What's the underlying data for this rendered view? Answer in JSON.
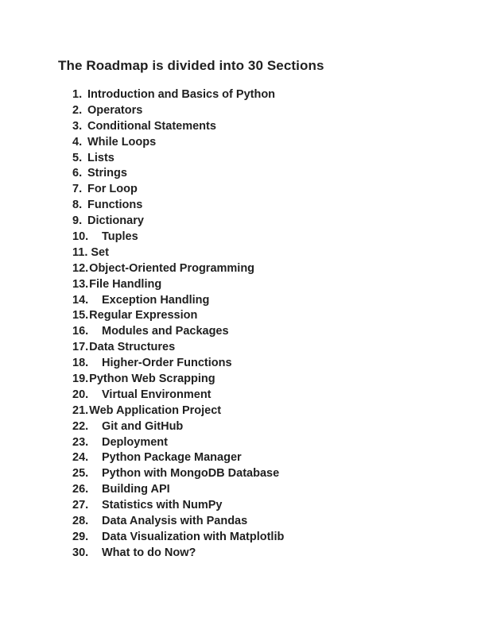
{
  "heading": "The Roadmap is divided into 30 Sections",
  "sections": [
    {
      "num": "1.",
      "title": "Introduction and Basics of Python"
    },
    {
      "num": "2.",
      "title": "Operators"
    },
    {
      "num": "3.",
      "title": "Conditional Statements"
    },
    {
      "num": "4.",
      "title": "While Loops"
    },
    {
      "num": "5.",
      "title": "Lists"
    },
    {
      "num": "6.",
      "title": "Strings"
    },
    {
      "num": "7.",
      "title": "For Loop"
    },
    {
      "num": "8.",
      "title": "Functions"
    },
    {
      "num": "9.",
      "title": "Dictionary"
    },
    {
      "num": "10.",
      "title": "Tuples"
    },
    {
      "num": "11.",
      "title": "Set"
    },
    {
      "num": "12.",
      "title": "Object-Oriented Programming"
    },
    {
      "num": "13.",
      "title": "File Handling"
    },
    {
      "num": "14.",
      "title": "Exception Handling"
    },
    {
      "num": "15.",
      "title": "Regular Expression"
    },
    {
      "num": "16.",
      "title": "Modules and Packages"
    },
    {
      "num": "17.",
      "title": "Data Structures"
    },
    {
      "num": "18.",
      "title": "Higher-Order Functions"
    },
    {
      "num": "19.",
      "title": "Python Web Scrapping"
    },
    {
      "num": "20.",
      "title": "Virtual Environment"
    },
    {
      "num": "21.",
      "title": "Web Application Project"
    },
    {
      "num": "22.",
      "title": "Git and GitHub"
    },
    {
      "num": "23.",
      "title": "Deployment"
    },
    {
      "num": "24.",
      "title": "Python Package Manager"
    },
    {
      "num": "25.",
      "title": "Python with MongoDB Database"
    },
    {
      "num": "26.",
      "title": "Building API"
    },
    {
      "num": "27.",
      "title": "Statistics with NumPy"
    },
    {
      "num": "28.",
      "title": "Data Analysis with Pandas"
    },
    {
      "num": "29.",
      "title": "Data Visualization with Matplotlib"
    },
    {
      "num": "30.",
      "title": "What to do Now?"
    }
  ]
}
